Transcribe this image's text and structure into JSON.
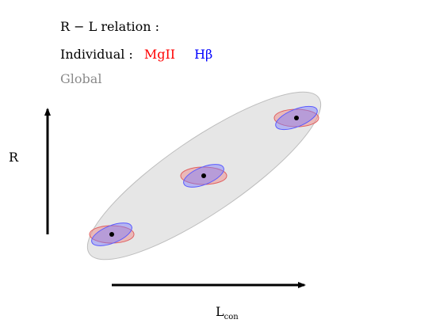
{
  "legend": {
    "title": "R − L relation :",
    "individual_label": "Individual :",
    "series_mgii": "MgII",
    "series_hbeta": "Hβ",
    "global_label": "Global"
  },
  "axes": {
    "y_label": "R",
    "x_label_main": "L",
    "x_label_sub": "con"
  },
  "colors": {
    "mgii": "#ff0000",
    "hbeta": "#0000ff",
    "global_text": "#8a8a8a",
    "global_fill": "#d9d9d9"
  }
}
